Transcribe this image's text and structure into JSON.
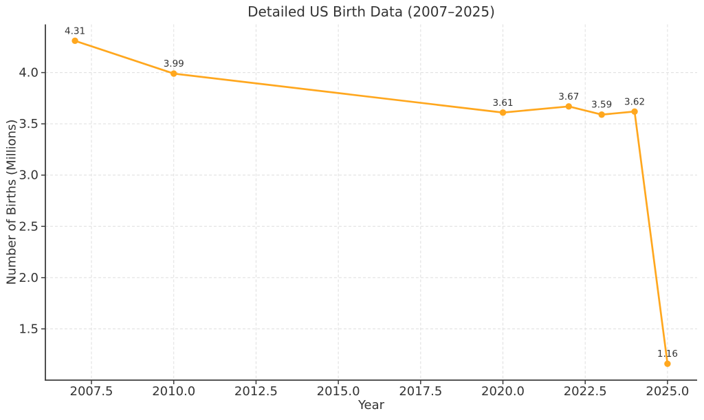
{
  "chart_data": {
    "type": "line",
    "title": "Detailed US Birth Data (2007–2025)",
    "xlabel": "Year",
    "ylabel": "Number of Births (Millions)",
    "x": [
      2007,
      2010,
      2020,
      2022,
      2023,
      2024,
      2025
    ],
    "values": [
      4.31,
      3.99,
      3.61,
      3.67,
      3.59,
      3.62,
      1.16
    ],
    "point_labels": [
      "4.31",
      "3.99",
      "3.61",
      "3.67",
      "3.59",
      "3.62",
      "1.16"
    ],
    "xlim": [
      2006.1,
      2025.9
    ],
    "ylim": [
      1.0,
      4.47
    ],
    "x_ticks": {
      "values": [
        2007.5,
        2010.0,
        2012.5,
        2015.0,
        2017.5,
        2020.0,
        2022.5,
        2025.0
      ],
      "labels": [
        "2007.5",
        "2010.0",
        "2012.5",
        "2015.0",
        "2017.5",
        "2020.0",
        "2022.5",
        "2025.0"
      ]
    },
    "y_ticks": {
      "values": [
        1.5,
        2.0,
        2.5,
        3.0,
        3.5,
        4.0
      ],
      "labels": [
        "1.5",
        "2.0",
        "2.5",
        "3.0",
        "3.5",
        "4.0"
      ]
    },
    "grid": "dashed",
    "legend": "none",
    "marker": "circle",
    "colors": {
      "line": "#ffa71e",
      "marker": "#ffa71e",
      "grid": "#dedede",
      "spine": "#3b3b3b",
      "text": "#333333",
      "annotation": "#333333"
    }
  }
}
